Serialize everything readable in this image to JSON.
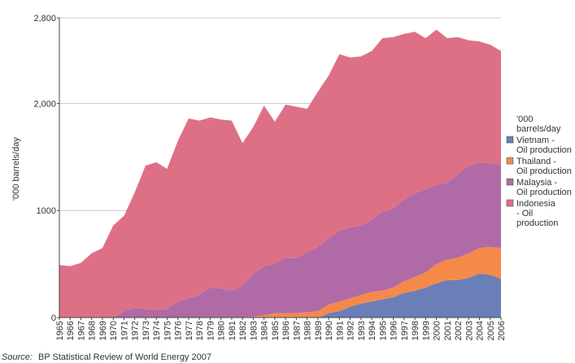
{
  "chart_data": {
    "type": "area",
    "stacked": true,
    "ylabel": "'000 barrels/day",
    "ylim": [
      0,
      2800
    ],
    "yticks": [
      {
        "value": 0,
        "label": "0"
      },
      {
        "value": 1000,
        "label": "1000"
      },
      {
        "value": 2000,
        "label": "2,000"
      },
      {
        "value": 2800,
        "label": "2,800"
      }
    ],
    "grid": true,
    "legend_position": "right",
    "legend_title": "'000 barrels/day",
    "x": [
      "1965",
      "1966",
      "1967",
      "1968",
      "1969",
      "1970",
      "1971",
      "1972",
      "1973",
      "1974",
      "1975",
      "1976",
      "1977",
      "1978",
      "1979",
      "1980",
      "1981",
      "1982",
      "1983",
      "1984",
      "1985",
      "1986",
      "1987",
      "1988",
      "1989",
      "1990",
      "1991",
      "1992",
      "1993",
      "1994",
      "1995",
      "1996",
      "1997",
      "1998",
      "1999",
      "2000",
      "2001",
      "2002",
      "2003",
      "2004",
      "2005",
      "2006"
    ],
    "series": [
      {
        "name": "Vietnam - Oil production",
        "color": "#6a7fb8",
        "values": [
          0,
          0,
          0,
          0,
          0,
          0,
          0,
          0,
          0,
          0,
          0,
          0,
          0,
          0,
          0,
          0,
          0,
          0,
          0,
          0,
          0,
          0,
          0,
          0,
          0,
          40,
          60,
          100,
          130,
          150,
          170,
          190,
          230,
          250,
          280,
          320,
          350,
          350,
          370,
          410,
          400,
          360
        ]
      },
      {
        "name": "Thailand - Oil production",
        "color": "#f5894a",
        "values": [
          0,
          0,
          0,
          0,
          0,
          0,
          0,
          0,
          0,
          0,
          0,
          0,
          0,
          0,
          0,
          0,
          0,
          0,
          10,
          20,
          40,
          40,
          40,
          50,
          60,
          80,
          90,
          80,
          80,
          90,
          80,
          90,
          110,
          130,
          140,
          180,
          190,
          210,
          230,
          240,
          260,
          290
        ]
      },
      {
        "name": "Malaysia - Oil production",
        "color": "#b06aa6",
        "values": [
          0,
          0,
          0,
          0,
          0,
          0,
          60,
          90,
          80,
          70,
          80,
          150,
          180,
          210,
          280,
          270,
          250,
          300,
          400,
          460,
          460,
          520,
          520,
          560,
          600,
          620,
          660,
          660,
          650,
          670,
          740,
          740,
          760,
          780,
          780,
          740,
          720,
          780,
          820,
          800,
          780,
          780
        ]
      },
      {
        "name": "Indonesia - Oil production",
        "color": "#de7086",
        "values": [
          490,
          480,
          510,
          600,
          650,
          860,
          890,
          1080,
          1340,
          1380,
          1310,
          1500,
          1680,
          1630,
          1590,
          1580,
          1590,
          1330,
          1370,
          1500,
          1330,
          1430,
          1410,
          1340,
          1450,
          1520,
          1650,
          1590,
          1580,
          1580,
          1620,
          1600,
          1550,
          1510,
          1410,
          1450,
          1350,
          1280,
          1170,
          1130,
          1110,
          1060
        ]
      }
    ]
  },
  "source": {
    "label": "Source:",
    "text": "BP Statistical Review of World Energy 2007"
  }
}
